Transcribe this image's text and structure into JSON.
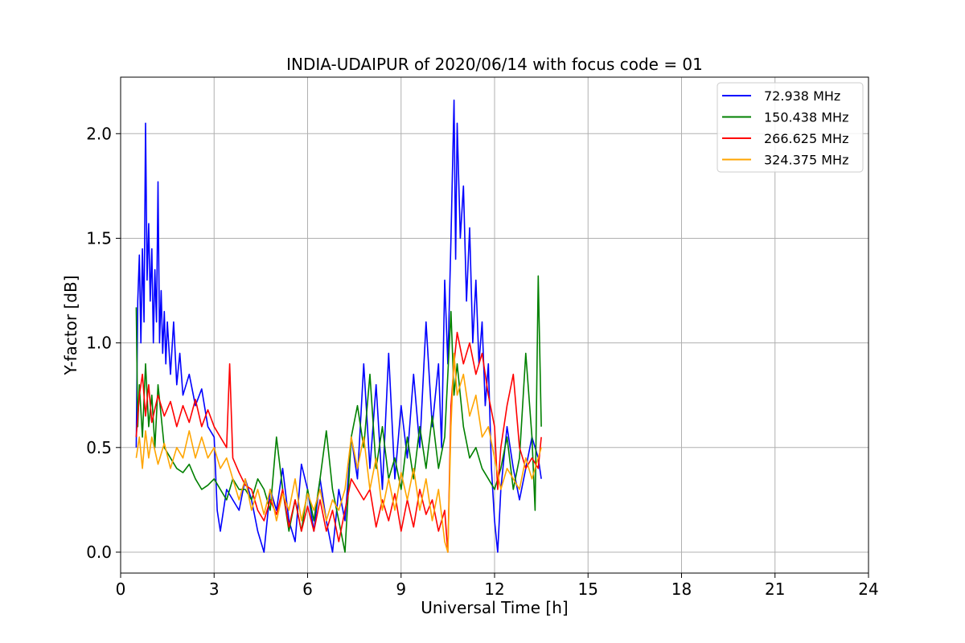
{
  "chart_data": {
    "type": "line",
    "title": "INDIA-UDAIPUR of 2020/06/14 with focus code = 01",
    "xlabel": "Universal Time [h]",
    "ylabel": "Y-factor [dB]",
    "xlim": [
      0,
      24
    ],
    "ylim": [
      -0.1,
      2.27
    ],
    "xticks": [
      0,
      3,
      6,
      9,
      12,
      15,
      18,
      21,
      24
    ],
    "xtick_labels": [
      "0",
      "3",
      "6",
      "9",
      "12",
      "15",
      "18",
      "21",
      "24"
    ],
    "yticks": [
      0.0,
      0.5,
      1.0,
      1.5,
      2.0
    ],
    "ytick_labels": [
      "0.0",
      "0.5",
      "1.0",
      "1.5",
      "2.0"
    ],
    "grid": true,
    "legend_position": "top-right",
    "series": [
      {
        "name": "  72.938 MHz",
        "color": "#0000ff",
        "points": [
          [
            0.5,
            0.5
          ],
          [
            0.55,
            1.2
          ],
          [
            0.6,
            1.42
          ],
          [
            0.65,
            1.0
          ],
          [
            0.7,
            1.45
          ],
          [
            0.75,
            1.1
          ],
          [
            0.8,
            2.05
          ],
          [
            0.85,
            1.3
          ],
          [
            0.9,
            1.57
          ],
          [
            0.95,
            1.2
          ],
          [
            1.0,
            1.45
          ],
          [
            1.05,
            1.0
          ],
          [
            1.1,
            1.35
          ],
          [
            1.15,
            1.1
          ],
          [
            1.2,
            1.77
          ],
          [
            1.25,
            1.0
          ],
          [
            1.3,
            1.25
          ],
          [
            1.35,
            0.95
          ],
          [
            1.4,
            1.15
          ],
          [
            1.45,
            0.9
          ],
          [
            1.5,
            1.1
          ],
          [
            1.6,
            0.85
          ],
          [
            1.7,
            1.1
          ],
          [
            1.8,
            0.8
          ],
          [
            1.9,
            0.95
          ],
          [
            2.0,
            0.75
          ],
          [
            2.2,
            0.85
          ],
          [
            2.4,
            0.7
          ],
          [
            2.6,
            0.78
          ],
          [
            2.8,
            0.6
          ],
          [
            3.0,
            0.55
          ],
          [
            3.1,
            0.2
          ],
          [
            3.2,
            0.1
          ],
          [
            3.4,
            0.3
          ],
          [
            3.6,
            0.25
          ],
          [
            3.8,
            0.2
          ],
          [
            4.0,
            0.35
          ],
          [
            4.2,
            0.25
          ],
          [
            4.4,
            0.1
          ],
          [
            4.6,
            0.0
          ],
          [
            4.8,
            0.3
          ],
          [
            5.0,
            0.2
          ],
          [
            5.2,
            0.4
          ],
          [
            5.4,
            0.15
          ],
          [
            5.6,
            0.05
          ],
          [
            5.8,
            0.42
          ],
          [
            6.0,
            0.3
          ],
          [
            6.2,
            0.1
          ],
          [
            6.4,
            0.35
          ],
          [
            6.6,
            0.15
          ],
          [
            6.8,
            0.0
          ],
          [
            7.0,
            0.3
          ],
          [
            7.2,
            0.15
          ],
          [
            7.4,
            0.55
          ],
          [
            7.6,
            0.35
          ],
          [
            7.8,
            0.9
          ],
          [
            8.0,
            0.4
          ],
          [
            8.2,
            0.8
          ],
          [
            8.4,
            0.3
          ],
          [
            8.6,
            0.95
          ],
          [
            8.8,
            0.35
          ],
          [
            9.0,
            0.7
          ],
          [
            9.2,
            0.45
          ],
          [
            9.4,
            0.85
          ],
          [
            9.6,
            0.5
          ],
          [
            9.8,
            1.1
          ],
          [
            10.0,
            0.6
          ],
          [
            10.2,
            0.9
          ],
          [
            10.3,
            0.5
          ],
          [
            10.4,
            1.3
          ],
          [
            10.5,
            0.9
          ],
          [
            10.6,
            1.5
          ],
          [
            10.7,
            2.16
          ],
          [
            10.75,
            1.4
          ],
          [
            10.8,
            2.05
          ],
          [
            10.9,
            1.5
          ],
          [
            11.0,
            1.75
          ],
          [
            11.1,
            1.2
          ],
          [
            11.2,
            1.55
          ],
          [
            11.3,
            1.0
          ],
          [
            11.4,
            1.3
          ],
          [
            11.5,
            0.9
          ],
          [
            11.6,
            1.1
          ],
          [
            11.7,
            0.7
          ],
          [
            11.8,
            0.9
          ],
          [
            11.9,
            0.4
          ],
          [
            12.0,
            0.15
          ],
          [
            12.1,
            0.0
          ],
          [
            12.2,
            0.3
          ],
          [
            12.4,
            0.6
          ],
          [
            12.6,
            0.4
          ],
          [
            12.8,
            0.25
          ],
          [
            13.0,
            0.4
          ],
          [
            13.2,
            0.55
          ],
          [
            13.4,
            0.45
          ],
          [
            13.5,
            0.35
          ]
        ]
      },
      {
        "name": "150.438 MHz",
        "color": "#008000",
        "points": [
          [
            0.5,
            1.17
          ],
          [
            0.55,
            0.6
          ],
          [
            0.6,
            0.8
          ],
          [
            0.7,
            0.55
          ],
          [
            0.8,
            0.9
          ],
          [
            0.9,
            0.6
          ],
          [
            1.0,
            0.75
          ],
          [
            1.1,
            0.5
          ],
          [
            1.2,
            0.8
          ],
          [
            1.4,
            0.5
          ],
          [
            1.6,
            0.45
          ],
          [
            1.8,
            0.4
          ],
          [
            2.0,
            0.38
          ],
          [
            2.2,
            0.42
          ],
          [
            2.4,
            0.35
          ],
          [
            2.6,
            0.3
          ],
          [
            2.8,
            0.32
          ],
          [
            3.0,
            0.35
          ],
          [
            3.2,
            0.3
          ],
          [
            3.4,
            0.25
          ],
          [
            3.6,
            0.35
          ],
          [
            3.8,
            0.3
          ],
          [
            4.0,
            0.3
          ],
          [
            4.2,
            0.25
          ],
          [
            4.4,
            0.35
          ],
          [
            4.6,
            0.3
          ],
          [
            4.8,
            0.2
          ],
          [
            5.0,
            0.55
          ],
          [
            5.2,
            0.3
          ],
          [
            5.4,
            0.1
          ],
          [
            5.6,
            0.25
          ],
          [
            5.8,
            0.1
          ],
          [
            6.0,
            0.3
          ],
          [
            6.2,
            0.15
          ],
          [
            6.4,
            0.35
          ],
          [
            6.6,
            0.58
          ],
          [
            6.8,
            0.3
          ],
          [
            7.0,
            0.15
          ],
          [
            7.2,
            0.0
          ],
          [
            7.4,
            0.55
          ],
          [
            7.6,
            0.7
          ],
          [
            7.8,
            0.5
          ],
          [
            8.0,
            0.85
          ],
          [
            8.2,
            0.4
          ],
          [
            8.4,
            0.6
          ],
          [
            8.6,
            0.35
          ],
          [
            8.8,
            0.45
          ],
          [
            9.0,
            0.3
          ],
          [
            9.2,
            0.55
          ],
          [
            9.4,
            0.35
          ],
          [
            9.6,
            0.6
          ],
          [
            9.8,
            0.4
          ],
          [
            10.0,
            0.65
          ],
          [
            10.2,
            0.4
          ],
          [
            10.4,
            0.55
          ],
          [
            10.6,
            1.15
          ],
          [
            10.7,
            0.75
          ],
          [
            10.8,
            0.9
          ],
          [
            11.0,
            0.6
          ],
          [
            11.2,
            0.45
          ],
          [
            11.4,
            0.5
          ],
          [
            11.6,
            0.4
          ],
          [
            11.8,
            0.35
          ],
          [
            12.0,
            0.3
          ],
          [
            12.2,
            0.4
          ],
          [
            12.4,
            0.55
          ],
          [
            12.6,
            0.3
          ],
          [
            12.8,
            0.45
          ],
          [
            13.0,
            0.95
          ],
          [
            13.2,
            0.55
          ],
          [
            13.3,
            0.2
          ],
          [
            13.4,
            1.32
          ],
          [
            13.5,
            0.6
          ]
        ]
      },
      {
        "name": "266.625 MHz",
        "color": "#ff0000",
        "points": [
          [
            0.5,
            0.55
          ],
          [
            0.6,
            0.75
          ],
          [
            0.7,
            0.85
          ],
          [
            0.8,
            0.65
          ],
          [
            0.9,
            0.8
          ],
          [
            1.0,
            0.62
          ],
          [
            1.2,
            0.75
          ],
          [
            1.4,
            0.65
          ],
          [
            1.6,
            0.72
          ],
          [
            1.8,
            0.6
          ],
          [
            2.0,
            0.7
          ],
          [
            2.2,
            0.62
          ],
          [
            2.4,
            0.73
          ],
          [
            2.6,
            0.6
          ],
          [
            2.8,
            0.68
          ],
          [
            3.0,
            0.6
          ],
          [
            3.2,
            0.55
          ],
          [
            3.4,
            0.5
          ],
          [
            3.5,
            0.9
          ],
          [
            3.6,
            0.45
          ],
          [
            3.8,
            0.38
          ],
          [
            4.0,
            0.32
          ],
          [
            4.2,
            0.3
          ],
          [
            4.4,
            0.2
          ],
          [
            4.6,
            0.15
          ],
          [
            4.8,
            0.25
          ],
          [
            5.0,
            0.18
          ],
          [
            5.2,
            0.3
          ],
          [
            5.4,
            0.12
          ],
          [
            5.6,
            0.25
          ],
          [
            5.8,
            0.1
          ],
          [
            6.0,
            0.22
          ],
          [
            6.2,
            0.1
          ],
          [
            6.4,
            0.25
          ],
          [
            6.6,
            0.1
          ],
          [
            6.8,
            0.2
          ],
          [
            7.0,
            0.05
          ],
          [
            7.2,
            0.2
          ],
          [
            7.4,
            0.35
          ],
          [
            7.6,
            0.3
          ],
          [
            7.8,
            0.25
          ],
          [
            8.0,
            0.3
          ],
          [
            8.2,
            0.12
          ],
          [
            8.4,
            0.25
          ],
          [
            8.6,
            0.15
          ],
          [
            8.8,
            0.28
          ],
          [
            9.0,
            0.1
          ],
          [
            9.2,
            0.25
          ],
          [
            9.4,
            0.12
          ],
          [
            9.6,
            0.3
          ],
          [
            9.8,
            0.18
          ],
          [
            10.0,
            0.25
          ],
          [
            10.2,
            0.1
          ],
          [
            10.4,
            0.2
          ],
          [
            10.5,
            0.0
          ],
          [
            10.6,
            0.7
          ],
          [
            10.7,
            0.9
          ],
          [
            10.8,
            1.05
          ],
          [
            11.0,
            0.9
          ],
          [
            11.2,
            1.0
          ],
          [
            11.4,
            0.85
          ],
          [
            11.6,
            0.95
          ],
          [
            11.8,
            0.75
          ],
          [
            12.0,
            0.6
          ],
          [
            12.1,
            0.3
          ],
          [
            12.2,
            0.5
          ],
          [
            12.4,
            0.7
          ],
          [
            12.6,
            0.85
          ],
          [
            12.8,
            0.5
          ],
          [
            13.0,
            0.4
          ],
          [
            13.2,
            0.45
          ],
          [
            13.4,
            0.4
          ],
          [
            13.5,
            0.55
          ]
        ]
      },
      {
        "name": "324.375 MHz",
        "color": "#ffa500",
        "points": [
          [
            0.5,
            0.45
          ],
          [
            0.6,
            0.55
          ],
          [
            0.7,
            0.4
          ],
          [
            0.8,
            0.58
          ],
          [
            0.9,
            0.45
          ],
          [
            1.0,
            0.55
          ],
          [
            1.2,
            0.42
          ],
          [
            1.4,
            0.52
          ],
          [
            1.6,
            0.4
          ],
          [
            1.8,
            0.5
          ],
          [
            2.0,
            0.45
          ],
          [
            2.2,
            0.58
          ],
          [
            2.4,
            0.45
          ],
          [
            2.6,
            0.55
          ],
          [
            2.8,
            0.45
          ],
          [
            3.0,
            0.5
          ],
          [
            3.2,
            0.4
          ],
          [
            3.4,
            0.45
          ],
          [
            3.6,
            0.35
          ],
          [
            3.8,
            0.25
          ],
          [
            4.0,
            0.35
          ],
          [
            4.2,
            0.2
          ],
          [
            4.4,
            0.3
          ],
          [
            4.6,
            0.18
          ],
          [
            4.8,
            0.3
          ],
          [
            5.0,
            0.15
          ],
          [
            5.2,
            0.28
          ],
          [
            5.4,
            0.2
          ],
          [
            5.6,
            0.35
          ],
          [
            5.8,
            0.15
          ],
          [
            6.0,
            0.28
          ],
          [
            6.2,
            0.2
          ],
          [
            6.4,
            0.3
          ],
          [
            6.6,
            0.15
          ],
          [
            6.8,
            0.25
          ],
          [
            7.0,
            0.2
          ],
          [
            7.2,
            0.3
          ],
          [
            7.4,
            0.55
          ],
          [
            7.6,
            0.4
          ],
          [
            7.8,
            0.55
          ],
          [
            8.0,
            0.3
          ],
          [
            8.2,
            0.45
          ],
          [
            8.4,
            0.2
          ],
          [
            8.6,
            0.35
          ],
          [
            8.8,
            0.2
          ],
          [
            9.0,
            0.38
          ],
          [
            9.2,
            0.25
          ],
          [
            9.4,
            0.4
          ],
          [
            9.6,
            0.2
          ],
          [
            9.8,
            0.35
          ],
          [
            10.0,
            0.15
          ],
          [
            10.2,
            0.3
          ],
          [
            10.4,
            0.05
          ],
          [
            10.5,
            0.0
          ],
          [
            10.6,
            0.6
          ],
          [
            10.7,
            0.95
          ],
          [
            10.8,
            0.75
          ],
          [
            11.0,
            0.85
          ],
          [
            11.2,
            0.65
          ],
          [
            11.4,
            0.75
          ],
          [
            11.6,
            0.55
          ],
          [
            11.8,
            0.6
          ],
          [
            12.0,
            0.45
          ],
          [
            12.2,
            0.3
          ],
          [
            12.4,
            0.4
          ],
          [
            12.6,
            0.35
          ],
          [
            12.8,
            0.3
          ],
          [
            13.0,
            0.45
          ],
          [
            13.2,
            0.35
          ],
          [
            13.4,
            0.45
          ],
          [
            13.5,
            0.5
          ]
        ]
      }
    ]
  }
}
